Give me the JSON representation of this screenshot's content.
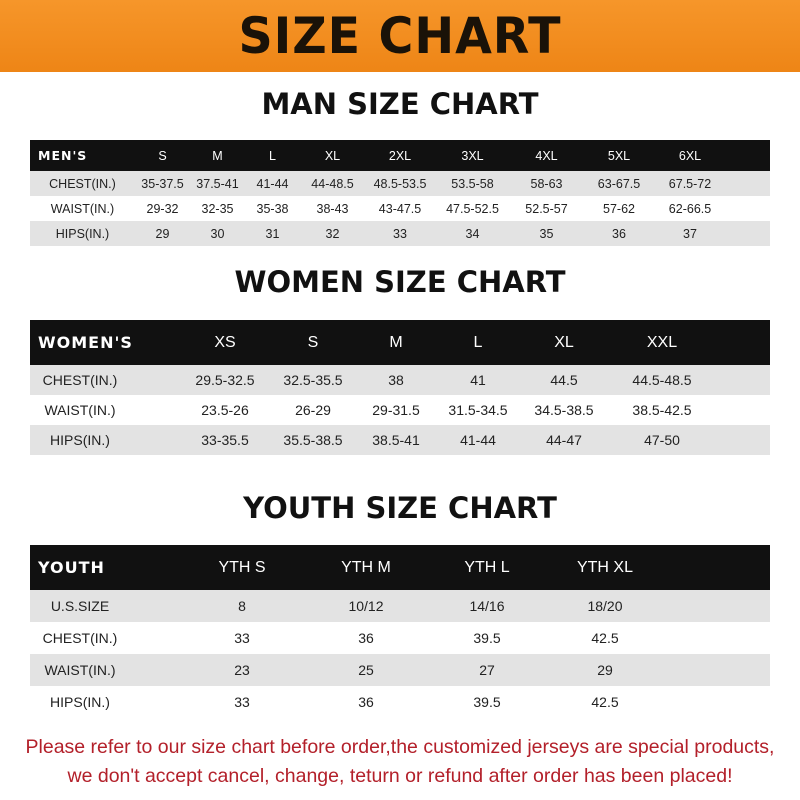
{
  "banner_title": "SIZE CHART",
  "men": {
    "title": "MAN SIZE CHART",
    "header": [
      "MEN'S",
      "S",
      "M",
      "L",
      "XL",
      "2XL",
      "3XL",
      "4XL",
      "5XL",
      "6XL"
    ],
    "rows": [
      [
        "CHEST(IN.)",
        "35-37.5",
        "37.5-41",
        "41-44",
        "44-48.5",
        "48.5-53.5",
        "53.5-58",
        "58-63",
        "63-67.5",
        "67.5-72"
      ],
      [
        "WAIST(IN.)",
        "29-32",
        "32-35",
        "35-38",
        "38-43",
        "43-47.5",
        "47.5-52.5",
        "52.5-57",
        "57-62",
        "62-66.5"
      ],
      [
        "HIPS(IN.)",
        "29",
        "30",
        "31",
        "32",
        "33",
        "34",
        "35",
        "36",
        "37"
      ]
    ]
  },
  "women": {
    "title": "WOMEN SIZE CHART",
    "header": [
      "WOMEN'S",
      "XS",
      "S",
      "M",
      "L",
      "XL",
      "XXL"
    ],
    "rows": [
      [
        "CHEST(IN.)",
        "29.5-32.5",
        "32.5-35.5",
        "38",
        "41",
        "44.5",
        "44.5-48.5"
      ],
      [
        "WAIST(IN.)",
        "23.5-26",
        "26-29",
        "29-31.5",
        "31.5-34.5",
        "34.5-38.5",
        "38.5-42.5"
      ],
      [
        "HIPS(IN.)",
        "33-35.5",
        "35.5-38.5",
        "38.5-41",
        "41-44",
        "44-47",
        "47-50"
      ]
    ]
  },
  "youth": {
    "title": "YOUTH SIZE CHART",
    "header": [
      "YOUTH",
      "YTH S",
      "YTH M",
      "YTH L",
      "YTH XL"
    ],
    "rows": [
      [
        "U.S.SIZE",
        "8",
        "10/12",
        "14/16",
        "18/20"
      ],
      [
        "CHEST(IN.)",
        "33",
        "36",
        "39.5",
        "42.5"
      ],
      [
        "WAIST(IN.)",
        "23",
        "25",
        "27",
        "29"
      ],
      [
        "HIPS(IN.)",
        "33",
        "36",
        "39.5",
        "42.5"
      ]
    ]
  },
  "notice": {
    "line1": "Please refer to our size chart before order,the customized jerseys are special products,",
    "line2": "we don't accept cancel, change, teturn or refund after order has been placed!"
  },
  "colors": {
    "banner": "#f08a1e",
    "header_row": "#111111",
    "stripe": "#e3e3e3",
    "notice": "#b3202a"
  }
}
